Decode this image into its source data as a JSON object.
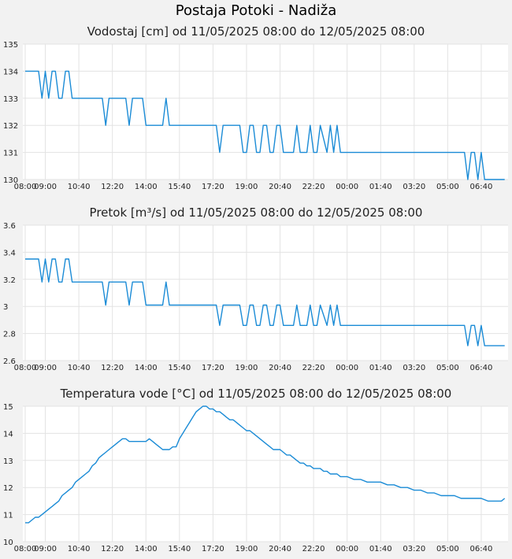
{
  "title": "Postaja Potoki - Nadiža",
  "chart_data": [
    {
      "type": "line",
      "title": "Vodostaj [cm] od 11/05/2025 08:00 do 12/05/2025 08:00",
      "x_tick_labels": [
        "09:00",
        "10:40",
        "12:20",
        "14:00",
        "15:40",
        "17:20",
        "19:00",
        "20:40",
        "22:20",
        "00:00",
        "01:40",
        "03:20",
        "05:00",
        "06:40",
        "08:00"
      ],
      "y_tick_labels": [
        "130",
        "131",
        "132",
        "133",
        "134",
        "135"
      ],
      "ylim": [
        130,
        135
      ],
      "grid": true,
      "line_color": "#1a8bd6",
      "series": [
        {
          "x": [
            "08:00",
            "08:40",
            "08:50",
            "09:00",
            "09:10",
            "09:20",
            "09:30",
            "09:40",
            "09:50",
            "10:00",
            "10:10",
            "10:20",
            "10:30",
            "11:50",
            "12:00",
            "12:10",
            "12:20",
            "13:00",
            "13:10",
            "13:20",
            "13:30",
            "13:50",
            "14:00",
            "14:50",
            "15:00",
            "15:10",
            "15:20",
            "15:30",
            "17:30",
            "17:40",
            "17:50",
            "18:00",
            "18:40",
            "18:50",
            "19:00",
            "19:10",
            "19:20",
            "19:30",
            "19:40",
            "19:50",
            "20:00",
            "20:10",
            "20:20",
            "20:30",
            "20:40",
            "20:50",
            "21:10",
            "21:20",
            "21:30",
            "21:40",
            "21:50",
            "22:00",
            "22:10",
            "22:20",
            "22:30",
            "22:40",
            "23:00",
            "23:10",
            "23:20",
            "23:30",
            "23:40",
            "23:50",
            "00:00",
            "00:10",
            "00:20",
            "05:50",
            "06:00",
            "06:10",
            "06:20",
            "06:30",
            "06:40",
            "06:50",
            "07:00",
            "07:50"
          ],
          "values": [
            134,
            134,
            133,
            134,
            133,
            134,
            134,
            133,
            133,
            134,
            134,
            133,
            133,
            133,
            132,
            133,
            133,
            133,
            132,
            133,
            133,
            133,
            132,
            132,
            133,
            132,
            132,
            132,
            132,
            131,
            132,
            132,
            132,
            131,
            131,
            132,
            132,
            131,
            131,
            132,
            132,
            131,
            131,
            132,
            132,
            131,
            131,
            131,
            132,
            131,
            131,
            131,
            132,
            131,
            131,
            132,
            131,
            132,
            131,
            132,
            131,
            131,
            131,
            131,
            131,
            131,
            130,
            131,
            131,
            130,
            131,
            130,
            130,
            130
          ]
        }
      ]
    },
    {
      "type": "line",
      "title": "Pretok [m³/s] od 11/05/2025 08:00 do 12/05/2025 08:00",
      "x_tick_labels": [
        "09:00",
        "10:40",
        "12:20",
        "14:00",
        "15:40",
        "17:20",
        "19:00",
        "20:40",
        "22:20",
        "00:00",
        "01:40",
        "03:20",
        "05:00",
        "06:40",
        "08:00"
      ],
      "y_tick_labels": [
        "2.6",
        "2.8",
        "3",
        "3.2",
        "3.4",
        "3.6"
      ],
      "ylim": [
        2.6,
        3.6
      ],
      "grid": true,
      "line_color": "#1a8bd6",
      "series": [
        {
          "x": [
            "08:00",
            "08:40",
            "08:50",
            "09:00",
            "09:10",
            "09:20",
            "09:30",
            "09:40",
            "09:50",
            "10:00",
            "10:10",
            "10:20",
            "10:30",
            "11:50",
            "12:00",
            "12:10",
            "12:20",
            "13:00",
            "13:10",
            "13:20",
            "13:30",
            "13:50",
            "14:00",
            "14:50",
            "15:00",
            "15:10",
            "15:20",
            "15:30",
            "17:30",
            "17:40",
            "17:50",
            "18:00",
            "18:40",
            "18:50",
            "19:00",
            "19:10",
            "19:20",
            "19:30",
            "19:40",
            "19:50",
            "20:00",
            "20:10",
            "20:20",
            "20:30",
            "20:40",
            "20:50",
            "21:10",
            "21:20",
            "21:30",
            "21:40",
            "21:50",
            "22:00",
            "22:10",
            "22:20",
            "22:30",
            "22:40",
            "23:00",
            "23:10",
            "23:20",
            "23:30",
            "23:40",
            "23:50",
            "00:00",
            "00:10",
            "00:20",
            "05:50",
            "06:00",
            "06:10",
            "06:20",
            "06:30",
            "06:40",
            "06:50",
            "07:00",
            "07:50"
          ],
          "values": [
            3.35,
            3.35,
            3.18,
            3.35,
            3.18,
            3.35,
            3.35,
            3.18,
            3.18,
            3.35,
            3.35,
            3.18,
            3.18,
            3.18,
            3.01,
            3.18,
            3.18,
            3.18,
            3.01,
            3.18,
            3.18,
            3.18,
            3.01,
            3.01,
            3.18,
            3.01,
            3.01,
            3.01,
            3.01,
            2.86,
            3.01,
            3.01,
            3.01,
            2.86,
            2.86,
            3.01,
            3.01,
            2.86,
            2.86,
            3.01,
            3.01,
            2.86,
            2.86,
            3.01,
            3.01,
            2.86,
            2.86,
            2.86,
            3.01,
            2.86,
            2.86,
            2.86,
            3.01,
            2.86,
            2.86,
            3.01,
            2.86,
            3.01,
            2.86,
            3.01,
            2.86,
            2.86,
            2.86,
            2.86,
            2.86,
            2.86,
            2.71,
            2.86,
            2.86,
            2.71,
            2.86,
            2.71,
            2.71,
            2.71
          ]
        }
      ]
    },
    {
      "type": "line",
      "title": "Temperatura vode [°C] od 11/05/2025 08:00 do 12/05/2025 08:00",
      "x_tick_labels": [
        "09:00",
        "10:40",
        "12:20",
        "14:00",
        "15:40",
        "17:20",
        "19:00",
        "20:40",
        "22:20",
        "00:00",
        "01:40",
        "03:20",
        "05:00",
        "06:40",
        "08:00"
      ],
      "y_tick_labels": [
        "10",
        "11",
        "12",
        "13",
        "14",
        "15"
      ],
      "ylim": [
        10,
        15
      ],
      "grid": true,
      "line_color": "#1a8bd6",
      "series": [
        {
          "x": [
            "08:00",
            "08:10",
            "08:20",
            "08:30",
            "08:40",
            "08:50",
            "09:00",
            "09:10",
            "09:20",
            "09:30",
            "09:40",
            "09:50",
            "10:00",
            "10:10",
            "10:20",
            "10:30",
            "10:40",
            "10:50",
            "11:00",
            "11:10",
            "11:20",
            "11:30",
            "11:40",
            "11:50",
            "12:00",
            "12:10",
            "12:20",
            "12:30",
            "12:40",
            "12:50",
            "13:00",
            "13:10",
            "13:20",
            "13:30",
            "13:40",
            "13:50",
            "14:00",
            "14:10",
            "14:20",
            "14:30",
            "14:40",
            "14:50",
            "15:00",
            "15:10",
            "15:20",
            "15:30",
            "15:40",
            "15:50",
            "16:00",
            "16:10",
            "16:20",
            "16:30",
            "16:40",
            "16:50",
            "17:00",
            "17:10",
            "17:20",
            "17:30",
            "17:40",
            "17:50",
            "18:00",
            "18:10",
            "18:20",
            "18:30",
            "18:40",
            "18:50",
            "19:00",
            "19:10",
            "19:20",
            "19:30",
            "19:40",
            "19:50",
            "20:00",
            "20:10",
            "20:20",
            "20:30",
            "20:40",
            "20:50",
            "21:00",
            "21:10",
            "21:20",
            "21:30",
            "21:40",
            "21:50",
            "22:00",
            "22:10",
            "22:20",
            "22:30",
            "22:40",
            "22:50",
            "23:00",
            "23:10",
            "23:20",
            "23:30",
            "23:40",
            "23:50",
            "00:00",
            "00:20",
            "00:40",
            "01:00",
            "01:20",
            "01:40",
            "02:00",
            "02:20",
            "02:40",
            "03:00",
            "03:20",
            "03:40",
            "04:00",
            "04:20",
            "04:40",
            "05:00",
            "05:20",
            "05:40",
            "06:00",
            "06:20",
            "06:40",
            "07:00",
            "07:20",
            "07:40",
            "07:50"
          ],
          "values": [
            10.7,
            10.7,
            10.8,
            10.9,
            10.9,
            11.0,
            11.1,
            11.2,
            11.3,
            11.4,
            11.5,
            11.7,
            11.8,
            11.9,
            12.0,
            12.2,
            12.3,
            12.4,
            12.5,
            12.6,
            12.8,
            12.9,
            13.1,
            13.2,
            13.3,
            13.4,
            13.5,
            13.6,
            13.7,
            13.8,
            13.8,
            13.7,
            13.7,
            13.7,
            13.7,
            13.7,
            13.7,
            13.8,
            13.7,
            13.6,
            13.5,
            13.4,
            13.4,
            13.4,
            13.5,
            13.5,
            13.8,
            14.0,
            14.2,
            14.4,
            14.6,
            14.8,
            14.9,
            15.0,
            15.0,
            14.9,
            14.9,
            14.8,
            14.8,
            14.7,
            14.6,
            14.5,
            14.5,
            14.4,
            14.3,
            14.2,
            14.1,
            14.1,
            14.0,
            13.9,
            13.8,
            13.7,
            13.6,
            13.5,
            13.4,
            13.4,
            13.4,
            13.3,
            13.2,
            13.2,
            13.1,
            13.0,
            12.9,
            12.9,
            12.8,
            12.8,
            12.7,
            12.7,
            12.7,
            12.6,
            12.6,
            12.5,
            12.5,
            12.5,
            12.4,
            12.4,
            12.4,
            12.3,
            12.3,
            12.2,
            12.2,
            12.2,
            12.1,
            12.1,
            12.0,
            12.0,
            11.9,
            11.9,
            11.8,
            11.8,
            11.7,
            11.7,
            11.7,
            11.6,
            11.6,
            11.6,
            11.6,
            11.5,
            11.5,
            11.5,
            11.6
          ]
        }
      ]
    }
  ]
}
